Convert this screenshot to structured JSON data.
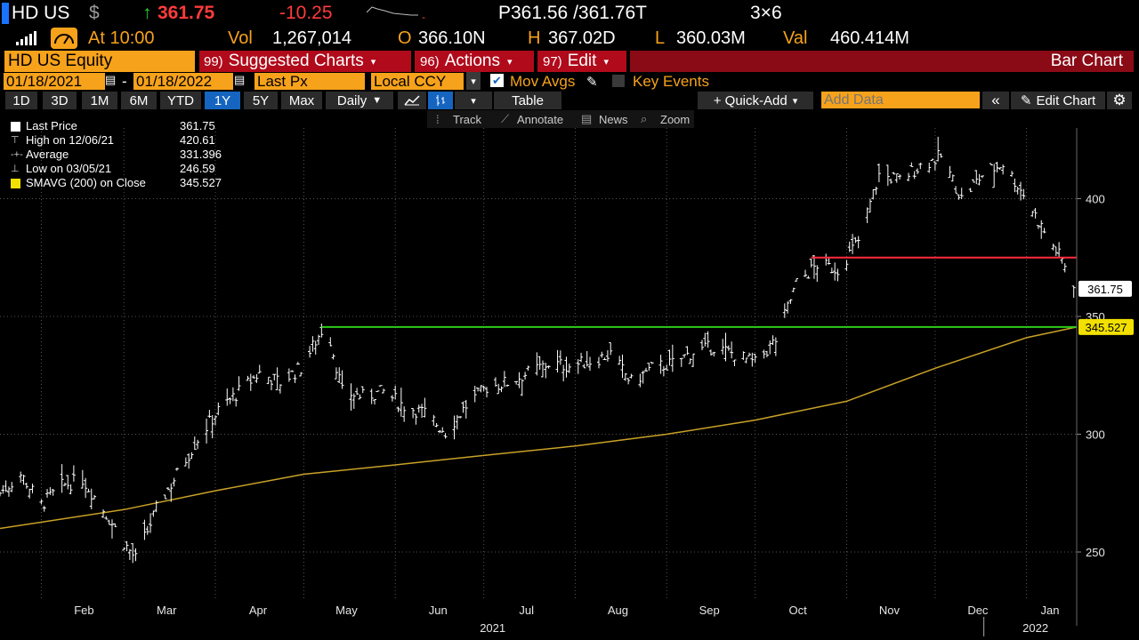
{
  "header": {
    "ticker": "HD US",
    "currency_symbol": "$",
    "last_price": "361.75",
    "change": "-10.25",
    "bid_ask": "P361.56 /361.76T",
    "size": "3×6",
    "time_label": "At 10:00",
    "volume_label": "Vol",
    "volume": "1,267,014",
    "open_label": "O",
    "open": "366.10N",
    "high_label": "H",
    "high": "367.02D",
    "low_label": "L",
    "low": "360.03M",
    "value_label": "Val",
    "value": "460.414M"
  },
  "menubar": {
    "security": "HD US Equity",
    "suggested_code": "99)",
    "suggested_label": "Suggested Charts",
    "actions_code": "96)",
    "actions_label": "Actions",
    "edit_code": "97)",
    "edit_label": "Edit",
    "chart_type": "Bar Chart"
  },
  "settings": {
    "start_date": "01/18/2021",
    "separator": "-",
    "end_date": "01/18/2022",
    "field": "Last Px",
    "currency": "Local CCY",
    "mov_avgs_label": "Mov Avgs",
    "key_events_label": "Key Events"
  },
  "periods": [
    "1D",
    "3D",
    "1M",
    "6M",
    "YTD",
    "1Y",
    "5Y",
    "Max"
  ],
  "selected_period": "1Y",
  "toolbar": {
    "frequency": "Daily",
    "table_label": "Table",
    "quick_add_label": "+ Quick-Add",
    "add_data_placeholder": "Add Data",
    "edit_chart_label": "Edit Chart"
  },
  "tools": {
    "track": "Track",
    "annotate": "Annotate",
    "news": "News",
    "zoom": "Zoom"
  },
  "legend": {
    "last_price_label": "Last Price",
    "last_price_value": "361.75",
    "high_label": "High on 12/06/21",
    "high_value": "420.61",
    "average_label": "Average",
    "average_value": "331.396",
    "low_label": "Low on 03/05/21",
    "low_value": "246.59",
    "sma_label": "SMAVG (200)  on Close",
    "sma_value": "345.527"
  },
  "colors": {
    "price_bars": "#ffffff",
    "sma": "#c9a227",
    "resistance": "#ff2a3a",
    "support": "#2ecc1a",
    "accent": "#f7a21b"
  },
  "chart_data": {
    "type": "bar",
    "y_ticks": [
      250,
      300,
      350,
      400
    ],
    "y_range": [
      230,
      430
    ],
    "months": [
      {
        "label": "Feb",
        "date": "2021-02-01"
      },
      {
        "label": "Mar",
        "date": "2021-03-01"
      },
      {
        "label": "Apr",
        "date": "2021-04-01"
      },
      {
        "label": "May",
        "date": "2021-05-01"
      },
      {
        "label": "Jun",
        "date": "2021-06-01"
      },
      {
        "label": "Jul",
        "date": "2021-07-01"
      },
      {
        "label": "Aug",
        "date": "2021-08-01"
      },
      {
        "label": "Sep",
        "date": "2021-09-01"
      },
      {
        "label": "Oct",
        "date": "2021-10-01"
      },
      {
        "label": "Nov",
        "date": "2021-11-01"
      },
      {
        "label": "Dec",
        "date": "2021-12-01"
      },
      {
        "label": "Jan",
        "date": "2022-01-01"
      }
    ],
    "year_labels": [
      {
        "label": "2021",
        "date": "2021-07-01"
      },
      {
        "label": "2022",
        "date": "2022-01-01"
      }
    ],
    "x_range": [
      "2021-01-18",
      "2022-01-18"
    ],
    "price_series": [
      [
        "2021-01-18",
        275
      ],
      [
        "2021-01-25",
        283
      ],
      [
        "2021-02-01",
        270
      ],
      [
        "2021-02-08",
        278
      ],
      [
        "2021-02-15",
        281
      ],
      [
        "2021-02-22",
        268
      ],
      [
        "2021-03-01",
        254
      ],
      [
        "2021-03-05",
        247
      ],
      [
        "2021-03-12",
        268
      ],
      [
        "2021-03-19",
        283
      ],
      [
        "2021-03-26",
        298
      ],
      [
        "2021-04-02",
        310
      ],
      [
        "2021-04-09",
        318
      ],
      [
        "2021-04-16",
        326
      ],
      [
        "2021-04-23",
        322
      ],
      [
        "2021-04-30",
        328
      ],
      [
        "2021-05-07",
        344
      ],
      [
        "2021-05-10",
        340
      ],
      [
        "2021-05-14",
        318
      ],
      [
        "2021-05-21",
        316
      ],
      [
        "2021-05-28",
        318
      ],
      [
        "2021-06-04",
        312
      ],
      [
        "2021-06-11",
        309
      ],
      [
        "2021-06-18",
        301
      ],
      [
        "2021-06-25",
        312
      ],
      [
        "2021-07-02",
        320
      ],
      [
        "2021-07-09",
        322
      ],
      [
        "2021-07-16",
        326
      ],
      [
        "2021-07-23",
        330
      ],
      [
        "2021-07-30",
        329
      ],
      [
        "2021-08-06",
        331
      ],
      [
        "2021-08-13",
        334
      ],
      [
        "2021-08-20",
        322
      ],
      [
        "2021-08-27",
        328
      ],
      [
        "2021-09-03",
        330
      ],
      [
        "2021-09-10",
        335
      ],
      [
        "2021-09-17",
        337
      ],
      [
        "2021-09-24",
        334
      ],
      [
        "2021-10-01",
        330
      ],
      [
        "2021-10-08",
        340
      ],
      [
        "2021-10-15",
        364
      ],
      [
        "2021-10-22",
        372
      ],
      [
        "2021-10-29",
        370
      ],
      [
        "2021-11-05",
        382
      ],
      [
        "2021-11-12",
        410
      ],
      [
        "2021-11-19",
        408
      ],
      [
        "2021-11-26",
        414
      ],
      [
        "2021-12-03",
        418
      ],
      [
        "2021-12-10",
        400
      ],
      [
        "2021-12-17",
        410
      ],
      [
        "2021-12-24",
        415
      ],
      [
        "2021-12-31",
        402
      ],
      [
        "2022-01-07",
        386
      ],
      [
        "2022-01-11",
        378
      ],
      [
        "2022-01-14",
        372
      ],
      [
        "2022-01-18",
        361.75
      ]
    ],
    "sma_series": [
      [
        "2021-01-18",
        260
      ],
      [
        "2021-03-01",
        268
      ],
      [
        "2021-04-01",
        276
      ],
      [
        "2021-05-01",
        283
      ],
      [
        "2021-06-01",
        287
      ],
      [
        "2021-07-01",
        291
      ],
      [
        "2021-08-01",
        295
      ],
      [
        "2021-09-01",
        300
      ],
      [
        "2021-10-01",
        306
      ],
      [
        "2021-11-01",
        314
      ],
      [
        "2021-12-01",
        328
      ],
      [
        "2022-01-01",
        341
      ],
      [
        "2022-01-18",
        345.527
      ]
    ],
    "support_level": 345.527,
    "resistance_level": 375,
    "last_price_tag": "361.75",
    "sma_tag": "345.527"
  }
}
